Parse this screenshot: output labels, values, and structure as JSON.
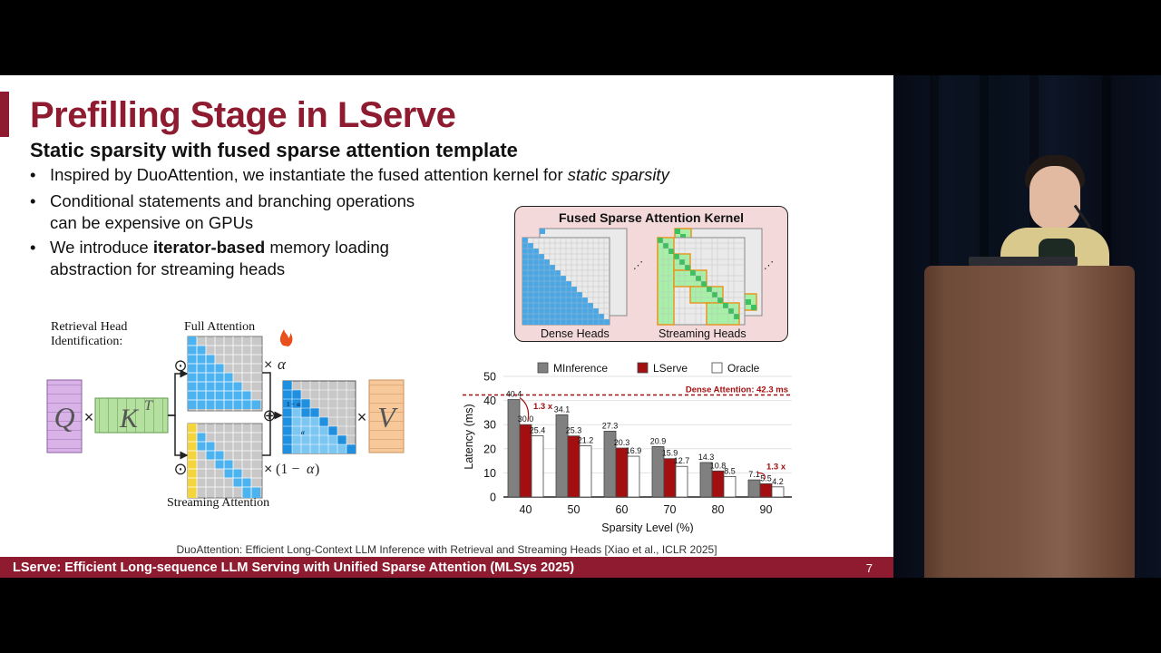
{
  "slide": {
    "title": "Prefilling Stage in LServe",
    "subtitle": "Static sparsity with fused sparse attention template",
    "bullets": [
      {
        "pre": "Inspired by DuoAttention, we instantiate the fused attention kernel for ",
        "em": "static sparsity"
      },
      {
        "line1": "Conditional statements and branching operations",
        "line2": "can be expensive on GPUs"
      },
      {
        "pre": "We introduce ",
        "bold": "iterator-based",
        "post": " memory loading",
        "line2": "abstraction for streaming heads"
      }
    ],
    "bullet_glyph": "•",
    "diagram": {
      "retrieval_label_1": "Retrieval Head",
      "retrieval_label_2": "Identification:",
      "full_attention_label": "Full Attention",
      "streaming_attention_label": "Streaming Attention",
      "q_label": "Q",
      "k_label": "K",
      "k_sup": "T",
      "v_label": "V",
      "times": "×",
      "alpha_mult": "× α",
      "one_minus_alpha_mult": "× (1 − α)",
      "hadamard_symbol": "⊙",
      "oplus_symbol": "⊕",
      "cell_1_minus_alpha": "1 − α",
      "cell_alpha": "α",
      "flame_icon": "flame-icon",
      "colors": {
        "q": "#d9b3e8",
        "k": "#b5e0a0",
        "v": "#f7c99a",
        "blue": "#4db3f0",
        "dark_blue": "#1f8fe0",
        "gray": "#c8c8c8",
        "yellow": "#f5d53c"
      }
    },
    "kernel": {
      "title": "Fused Sparse Attention Kernel",
      "dense_label": "Dense Heads",
      "streaming_label": "Streaming Heads",
      "ellipsis": "⋰",
      "colors": {
        "background": "#f3d9d9",
        "dense": "#4aa7e6",
        "streaming_light": "#a8f0a8",
        "streaming_dark": "#3fbf5f",
        "block_border": "#e8961e"
      }
    },
    "citation": "DuoAttention: Efficient Long-Context LLM Inference with Retrieval and Streaming Heads [Xiao et al., ICLR 2025]",
    "footer": "LServe: Efficient Long-sequence LLM Serving with Unified Sparse Attention (MLSys 2025)",
    "page_number": "7",
    "accent_color": "#8e1b30"
  },
  "chart_data": {
    "type": "bar",
    "title": "",
    "xlabel": "Sparsity Level (%)",
    "ylabel": "Latency (ms)",
    "categories": [
      "40",
      "50",
      "60",
      "70",
      "80",
      "90"
    ],
    "series": [
      {
        "name": "MInference",
        "color": "#808080",
        "values": [
          40.4,
          34.1,
          27.3,
          20.9,
          14.3,
          7.1
        ]
      },
      {
        "name": "LServe",
        "color": "#a30f10",
        "values": [
          30.0,
          25.3,
          20.3,
          15.9,
          10.8,
          5.5
        ]
      },
      {
        "name": "Oracle",
        "color": "#ffffff",
        "values": [
          25.4,
          21.2,
          16.9,
          12.7,
          8.5,
          4.2
        ]
      }
    ],
    "ylim": [
      0,
      50
    ],
    "yticks": [
      0,
      10,
      20,
      30,
      40,
      50
    ],
    "grid": true,
    "legend_position": "top",
    "reference_line": {
      "label": "Dense Attention: 42.3 ms",
      "value": 42.3,
      "color": "#a30f10",
      "style": "dashed"
    },
    "annotations": [
      {
        "text": "1.3 x",
        "category": "40"
      },
      {
        "text": "1.3 x",
        "category": "90"
      }
    ]
  },
  "speaker_panel": {
    "description": "presenter at podium"
  }
}
